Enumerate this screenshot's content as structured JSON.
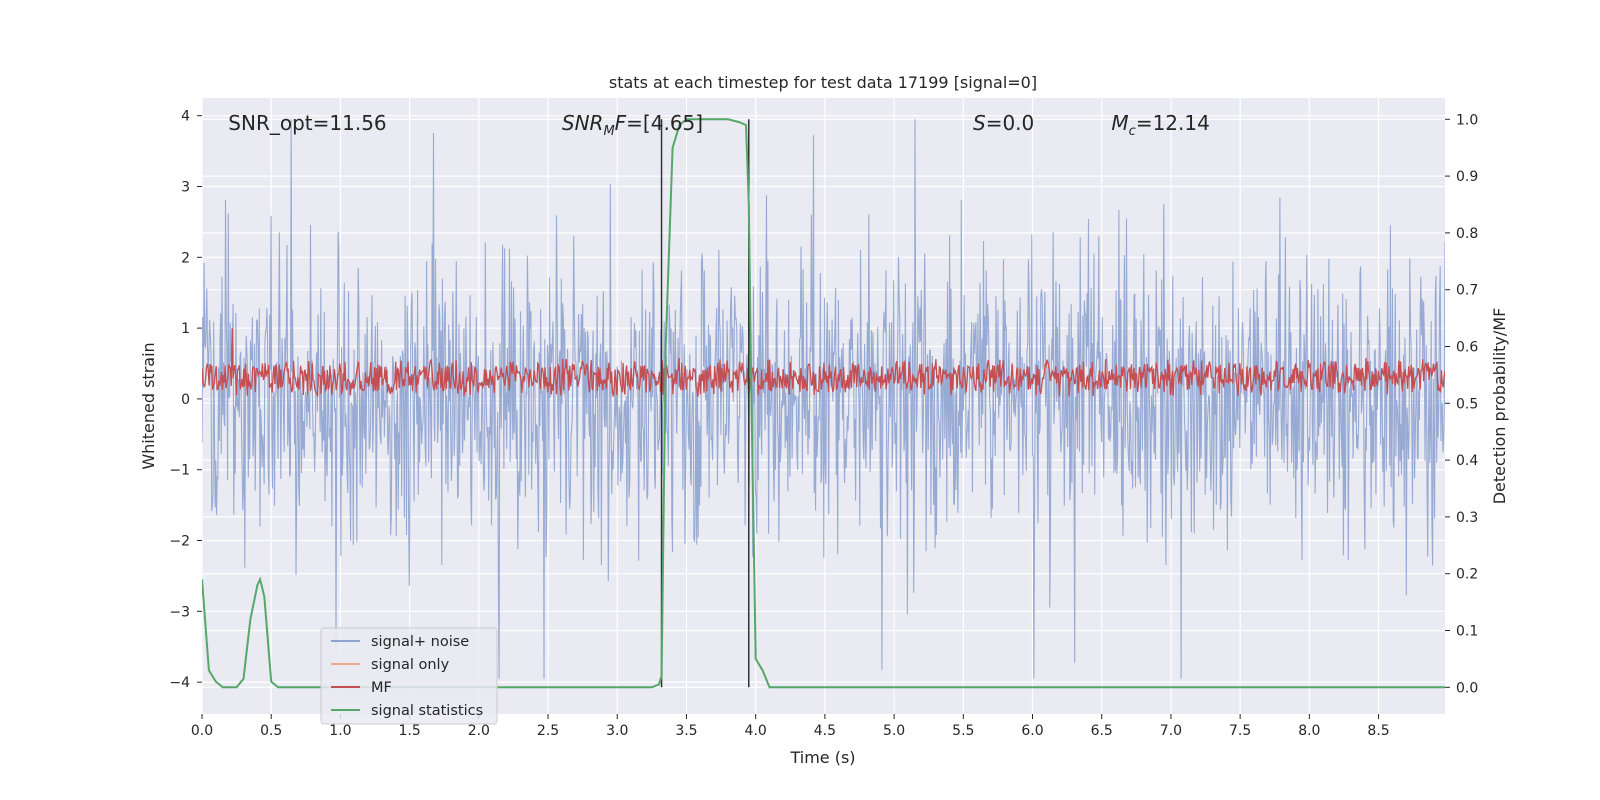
{
  "chart_data": {
    "type": "line",
    "title": "stats at each timestep for test data 17199 [signal=0]",
    "xlabel": "Time (s)",
    "ylabel": "Whitened strain",
    "ylabel_right": "Detection probability/MF",
    "xlim": [
      0.0,
      8.98
    ],
    "ylim": [
      -4.45,
      4.25
    ],
    "ylim_right": [
      -0.047,
      1.0375
    ],
    "xticks": [
      "0.0",
      "0.5",
      "1.0",
      "1.5",
      "2.0",
      "2.5",
      "3.0",
      "3.5",
      "4.0",
      "4.5",
      "5.0",
      "5.5",
      "6.0",
      "6.5",
      "7.0",
      "7.5",
      "8.0",
      "8.5"
    ],
    "yticks": [
      "4",
      "3",
      "2",
      "1",
      "0",
      "−1",
      "−2",
      "−3",
      "−4"
    ],
    "yticks_right": [
      "1.0",
      "0.9",
      "0.8",
      "0.7",
      "0.6",
      "0.5",
      "0.4",
      "0.3",
      "0.2",
      "0.1",
      "0.0"
    ],
    "grid": true,
    "legend_placement": "lower-left",
    "annotations": [
      {
        "text": "SNR_opt=11.56",
        "x": 0.19,
        "y": 3.9
      },
      {
        "text": "SNR",
        "sub": "M",
        "tail": "F=[4.65]",
        "x": 2.6,
        "y": 3.9
      },
      {
        "text": "S",
        "tail": "=0.0",
        "x": 5.57,
        "y": 3.9
      },
      {
        "text": "M",
        "sub": "c",
        "tail": "=12.14",
        "x": 6.57,
        "y": 3.9
      }
    ],
    "vlines": [
      {
        "x": 3.32,
        "ymin": 0.0,
        "ymax": 1.0
      },
      {
        "x": 3.95,
        "ymin": 0.0,
        "ymax": 1.0
      }
    ],
    "series": [
      {
        "name": "signal+ noise",
        "color": "#8ea3cf",
        "axis": "left",
        "note": "whitened noise trace, sampled 0.0-8.98 s, amplitude roughly -4 to 4"
      },
      {
        "name": "signal only",
        "color": "#f0a68e",
        "axis": "left",
        "values": "flat zero"
      },
      {
        "name": "MF",
        "color": "#c44e52",
        "axis": "left",
        "note": "matched-filter trace between about 0.0 and 0.7, one spike near 1.0 at t=0.22"
      },
      {
        "name": "signal statistics",
        "color": "#55a868",
        "axis": "right",
        "x": [
          0.0,
          0.05,
          0.1,
          0.15,
          0.2,
          0.25,
          0.3,
          0.35,
          0.4,
          0.42,
          0.45,
          0.5,
          0.55,
          0.6,
          1.0,
          2.0,
          3.0,
          3.25,
          3.3,
          3.32,
          3.35,
          3.4,
          3.45,
          3.5,
          3.6,
          3.7,
          3.8,
          3.88,
          3.93,
          3.95,
          3.97,
          4.0,
          4.05,
          4.1,
          5.0,
          6.0,
          7.0,
          8.0,
          8.98
        ],
        "y": [
          0.19,
          0.03,
          0.01,
          0.0,
          0.0,
          0.0,
          0.015,
          0.12,
          0.18,
          0.19,
          0.16,
          0.01,
          0.0,
          0.0,
          0.0,
          0.0,
          0.0,
          0.0,
          0.005,
          0.02,
          0.6,
          0.95,
          0.99,
          1.0,
          1.0,
          1.0,
          1.0,
          0.995,
          0.99,
          0.85,
          0.5,
          0.05,
          0.03,
          0.0,
          0.0,
          0.0,
          0.0,
          0.0,
          0.0
        ]
      }
    ]
  }
}
